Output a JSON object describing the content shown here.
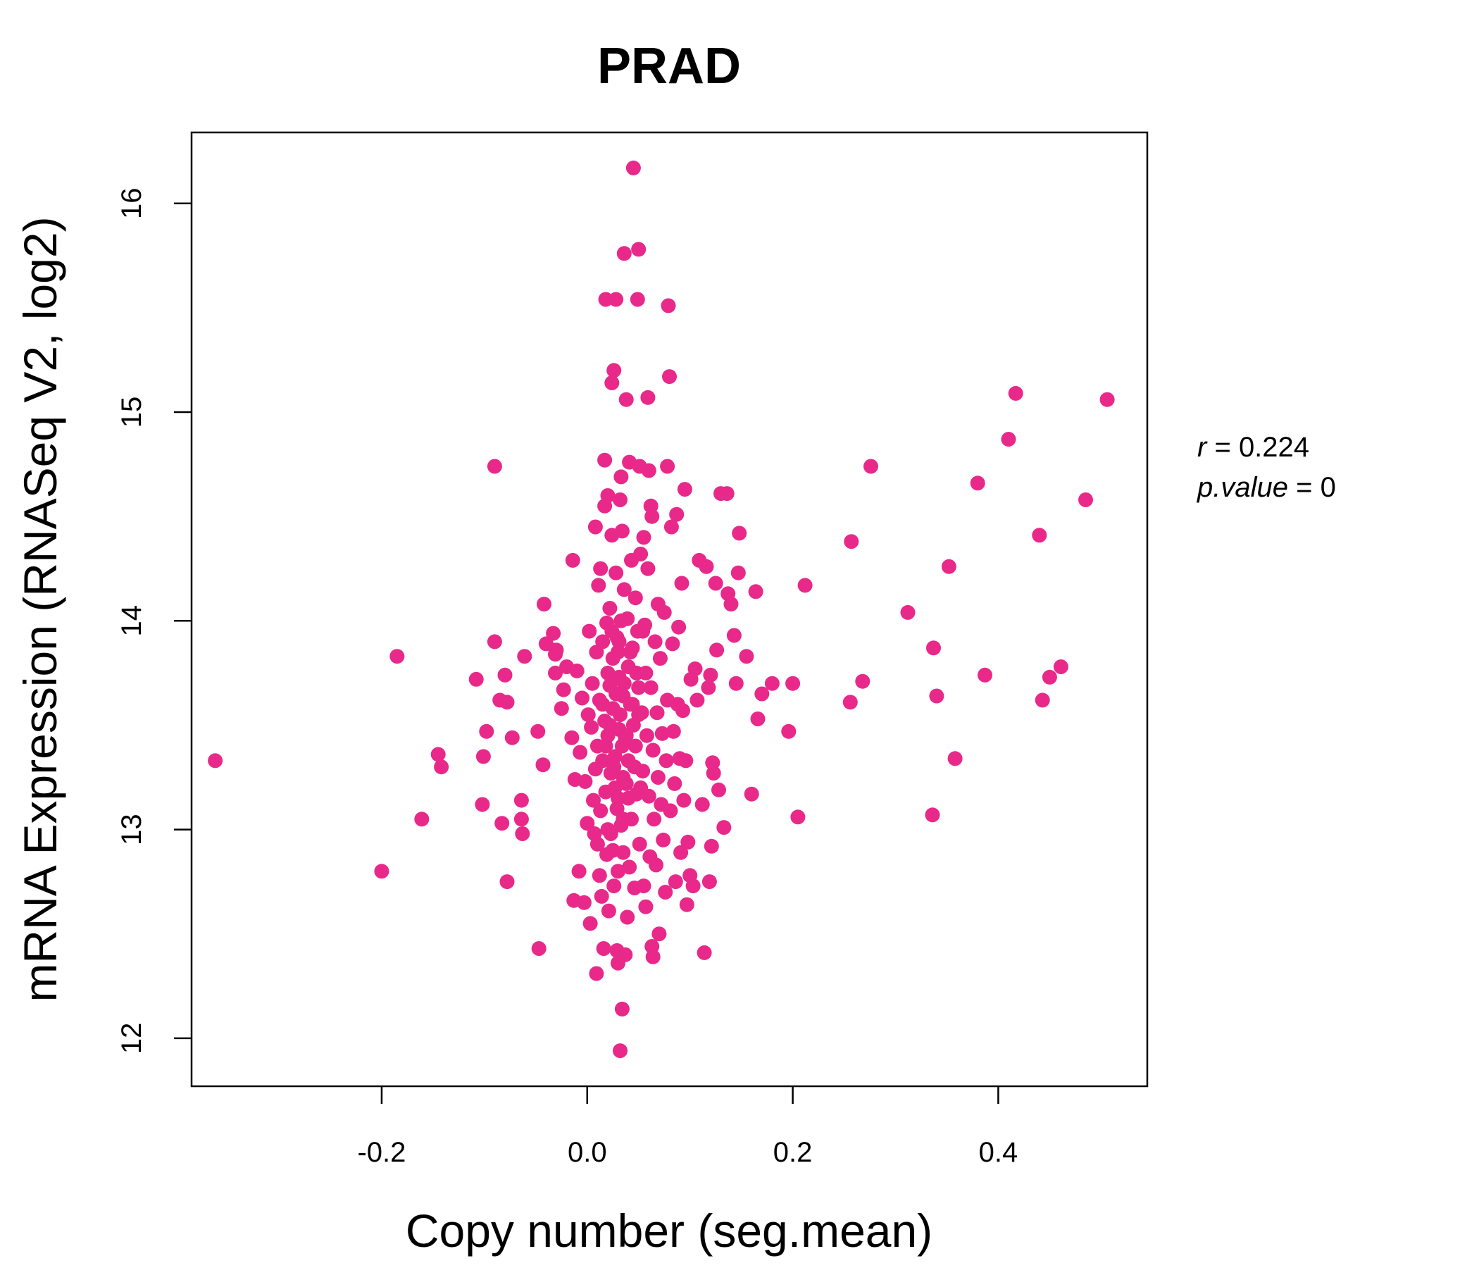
{
  "colors": {
    "point": "#e8298a",
    "title": "#e8298a",
    "axis": "#000000"
  },
  "chart_data": {
    "type": "scatter",
    "title": "PRAD",
    "xlabel": "Copy number (seg.mean)",
    "ylabel": "mRNA Expression (RNASeq V2, log2)",
    "xlim": [
      -0.385,
      0.545
    ],
    "ylim": [
      11.77,
      16.34
    ],
    "x_ticks": [
      "-0.2",
      "0.0",
      "0.2",
      "0.4"
    ],
    "y_ticks": [
      "12",
      "13",
      "14",
      "15",
      "16"
    ],
    "grid": false,
    "legend": "none",
    "stats": {
      "r_label": "r",
      "r_value": "0.224",
      "p_label": "p.value",
      "p_value": "0"
    },
    "points": [
      [
        -0.362,
        13.33
      ],
      [
        -0.2,
        12.8
      ],
      [
        -0.185,
        13.83
      ],
      [
        -0.161,
        13.05
      ],
      [
        -0.145,
        13.36
      ],
      [
        -0.142,
        13.3
      ],
      [
        -0.108,
        13.72
      ],
      [
        -0.102,
        13.12
      ],
      [
        -0.101,
        13.35
      ],
      [
        -0.098,
        13.47
      ],
      [
        -0.09,
        14.74
      ],
      [
        -0.09,
        13.9
      ],
      [
        -0.085,
        13.62
      ],
      [
        -0.083,
        13.03
      ],
      [
        -0.08,
        13.74
      ],
      [
        -0.078,
        13.61
      ],
      [
        -0.078,
        12.75
      ],
      [
        -0.073,
        13.44
      ],
      [
        -0.064,
        13.14
      ],
      [
        -0.064,
        13.05
      ],
      [
        -0.063,
        12.98
      ],
      [
        -0.061,
        13.83
      ],
      [
        -0.048,
        13.47
      ],
      [
        -0.047,
        12.43
      ],
      [
        -0.043,
        13.31
      ],
      [
        -0.042,
        14.08
      ],
      [
        -0.04,
        13.89
      ],
      [
        -0.033,
        13.94
      ],
      [
        -0.031,
        13.84
      ],
      [
        -0.031,
        13.75
      ],
      [
        -0.03,
        13.86
      ],
      [
        -0.025,
        13.58
      ],
      [
        -0.023,
        13.67
      ],
      [
        -0.02,
        13.78
      ],
      [
        -0.015,
        13.44
      ],
      [
        -0.014,
        14.29
      ],
      [
        -0.013,
        12.66
      ],
      [
        -0.012,
        13.24
      ],
      [
        -0.01,
        13.76
      ],
      [
        -0.008,
        12.8
      ],
      [
        -0.007,
        13.37
      ],
      [
        -0.005,
        13.63
      ],
      [
        -0.003,
        12.65
      ],
      [
        -0.002,
        13.23
      ],
      [
        0.0,
        13.03
      ],
      [
        0.001,
        13.55
      ],
      [
        0.002,
        13.95
      ],
      [
        0.003,
        12.55
      ],
      [
        0.004,
        13.49
      ],
      [
        0.005,
        13.7
      ],
      [
        0.006,
        13.14
      ],
      [
        0.007,
        12.98
      ],
      [
        0.008,
        14.45
      ],
      [
        0.008,
        13.29
      ],
      [
        0.009,
        12.31
      ],
      [
        0.009,
        13.85
      ],
      [
        0.01,
        13.4
      ],
      [
        0.01,
        12.93
      ],
      [
        0.011,
        14.17
      ],
      [
        0.012,
        13.62
      ],
      [
        0.012,
        12.78
      ],
      [
        0.013,
        14.25
      ],
      [
        0.013,
        13.09
      ],
      [
        0.014,
        12.68
      ],
      [
        0.015,
        13.9
      ],
      [
        0.015,
        13.33
      ],
      [
        0.016,
        12.43
      ],
      [
        0.017,
        14.77
      ],
      [
        0.017,
        14.55
      ],
      [
        0.017,
        13.52
      ],
      [
        0.018,
        15.54
      ],
      [
        0.018,
        13.18
      ],
      [
        0.019,
        13.99
      ],
      [
        0.019,
        12.88
      ],
      [
        0.02,
        14.6
      ],
      [
        0.02,
        13.45
      ],
      [
        0.021,
        12.61
      ],
      [
        0.022,
        14.06
      ],
      [
        0.022,
        13.69
      ],
      [
        0.023,
        13.27
      ],
      [
        0.023,
        12.98
      ],
      [
        0.024,
        15.14
      ],
      [
        0.024,
        14.41
      ],
      [
        0.025,
        13.82
      ],
      [
        0.025,
        13.58
      ],
      [
        0.026,
        15.2
      ],
      [
        0.026,
        12.73
      ],
      [
        0.027,
        13.35
      ],
      [
        0.028,
        15.54
      ],
      [
        0.028,
        14.23
      ],
      [
        0.029,
        13.92
      ],
      [
        0.029,
        12.42
      ],
      [
        0.03,
        13.15
      ],
      [
        0.03,
        12.36
      ],
      [
        0.031,
        13.73
      ],
      [
        0.031,
        13.48
      ],
      [
        0.032,
        14.58
      ],
      [
        0.032,
        11.94
      ],
      [
        0.033,
        14.69
      ],
      [
        0.033,
        13.02
      ],
      [
        0.034,
        14.43
      ],
      [
        0.034,
        12.14
      ],
      [
        0.035,
        13.64
      ],
      [
        0.035,
        12.89
      ],
      [
        0.036,
        15.76
      ],
      [
        0.036,
        14.15
      ],
      [
        0.037,
        13.44
      ],
      [
        0.037,
        12.4
      ],
      [
        0.038,
        15.06
      ],
      [
        0.038,
        13.22
      ],
      [
        0.039,
        12.58
      ],
      [
        0.039,
        14.01
      ],
      [
        0.04,
        13.78
      ],
      [
        0.04,
        13.33
      ],
      [
        0.041,
        14.76
      ],
      [
        0.041,
        12.82
      ],
      [
        0.042,
        13.6
      ],
      [
        0.043,
        14.29
      ],
      [
        0.043,
        13.05
      ],
      [
        0.044,
        13.87
      ],
      [
        0.045,
        16.17
      ],
      [
        0.045,
        13.5
      ],
      [
        0.046,
        12.72
      ],
      [
        0.047,
        14.11
      ],
      [
        0.047,
        13.4
      ],
      [
        0.048,
        13.17
      ],
      [
        0.049,
        15.54
      ],
      [
        0.049,
        13.95
      ],
      [
        0.05,
        15.78
      ],
      [
        0.05,
        13.68
      ],
      [
        0.051,
        14.74
      ],
      [
        0.051,
        12.93
      ],
      [
        0.052,
        14.32
      ],
      [
        0.053,
        13.56
      ],
      [
        0.054,
        13.28
      ],
      [
        0.055,
        14.4
      ],
      [
        0.055,
        12.73
      ],
      [
        0.056,
        13.98
      ],
      [
        0.057,
        12.63
      ],
      [
        0.058,
        13.45
      ],
      [
        0.059,
        15.07
      ],
      [
        0.059,
        14.25
      ],
      [
        0.06,
        14.72
      ],
      [
        0.06,
        13.16
      ],
      [
        0.061,
        12.87
      ],
      [
        0.062,
        14.55
      ],
      [
        0.062,
        13.68
      ],
      [
        0.063,
        14.5
      ],
      [
        0.063,
        12.44
      ],
      [
        0.064,
        13.38
      ],
      [
        0.064,
        12.39
      ],
      [
        0.065,
        13.05
      ],
      [
        0.066,
        13.9
      ],
      [
        0.067,
        12.83
      ],
      [
        0.068,
        13.56
      ],
      [
        0.069,
        14.08
      ],
      [
        0.069,
        13.25
      ],
      [
        0.07,
        12.5
      ],
      [
        0.071,
        13.82
      ],
      [
        0.072,
        13.12
      ],
      [
        0.073,
        13.46
      ],
      [
        0.074,
        12.95
      ],
      [
        0.075,
        14.04
      ],
      [
        0.076,
        12.7
      ],
      [
        0.077,
        13.33
      ],
      [
        0.078,
        14.74
      ],
      [
        0.078,
        13.62
      ],
      [
        0.079,
        15.51
      ],
      [
        0.08,
        15.17
      ],
      [
        0.081,
        13.09
      ],
      [
        0.082,
        14.45
      ],
      [
        0.083,
        13.89
      ],
      [
        0.084,
        13.47
      ],
      [
        0.085,
        13.22
      ],
      [
        0.086,
        12.75
      ],
      [
        0.087,
        14.51
      ],
      [
        0.088,
        13.6
      ],
      [
        0.089,
        13.97
      ],
      [
        0.09,
        13.34
      ],
      [
        0.091,
        12.89
      ],
      [
        0.092,
        14.18
      ],
      [
        0.093,
        13.57
      ],
      [
        0.094,
        13.14
      ],
      [
        0.095,
        14.63
      ],
      [
        0.096,
        13.33
      ],
      [
        0.097,
        12.64
      ],
      [
        0.098,
        12.94
      ],
      [
        0.1,
        12.78
      ],
      [
        0.101,
        13.72
      ],
      [
        0.103,
        12.73
      ],
      [
        0.105,
        13.77
      ],
      [
        0.107,
        13.62
      ],
      [
        0.109,
        14.29
      ],
      [
        0.112,
        13.12
      ],
      [
        0.114,
        12.41
      ],
      [
        0.116,
        14.26
      ],
      [
        0.118,
        13.68
      ],
      [
        0.119,
        12.75
      ],
      [
        0.12,
        13.74
      ],
      [
        0.121,
        12.92
      ],
      [
        0.122,
        13.32
      ],
      [
        0.123,
        13.27
      ],
      [
        0.125,
        14.18
      ],
      [
        0.126,
        13.86
      ],
      [
        0.128,
        13.19
      ],
      [
        0.13,
        14.61
      ],
      [
        0.133,
        13.01
      ],
      [
        0.136,
        14.61
      ],
      [
        0.137,
        14.13
      ],
      [
        0.14,
        14.08
      ],
      [
        0.143,
        13.93
      ],
      [
        0.145,
        13.7
      ],
      [
        0.147,
        14.23
      ],
      [
        0.148,
        14.42
      ],
      [
        0.155,
        13.83
      ],
      [
        0.16,
        13.17
      ],
      [
        0.164,
        14.14
      ],
      [
        0.166,
        13.53
      ],
      [
        0.17,
        13.65
      ],
      [
        0.18,
        13.7
      ],
      [
        0.196,
        13.47
      ],
      [
        0.2,
        13.7
      ],
      [
        0.205,
        13.06
      ],
      [
        0.212,
        14.17
      ],
      [
        0.256,
        13.61
      ],
      [
        0.257,
        14.38
      ],
      [
        0.268,
        13.71
      ],
      [
        0.276,
        14.74
      ],
      [
        0.312,
        14.04
      ],
      [
        0.336,
        13.07
      ],
      [
        0.337,
        13.87
      ],
      [
        0.34,
        13.64
      ],
      [
        0.352,
        14.26
      ],
      [
        0.358,
        13.34
      ],
      [
        0.38,
        14.66
      ],
      [
        0.387,
        13.74
      ],
      [
        0.41,
        14.87
      ],
      [
        0.417,
        15.09
      ],
      [
        0.44,
        14.41
      ],
      [
        0.443,
        13.62
      ],
      [
        0.45,
        13.73
      ],
      [
        0.461,
        13.78
      ],
      [
        0.485,
        14.58
      ],
      [
        0.506,
        15.06
      ],
      [
        0.02,
        13.75
      ],
      [
        0.022,
        13.5
      ],
      [
        0.024,
        13.95
      ],
      [
        0.026,
        13.3
      ],
      [
        0.028,
        13.65
      ],
      [
        0.03,
        13.85
      ],
      [
        0.032,
        13.55
      ],
      [
        0.034,
        13.4
      ],
      [
        0.036,
        13.7
      ],
      [
        0.027,
        13.2
      ],
      [
        0.029,
        13.1
      ],
      [
        0.031,
        13.9
      ],
      [
        0.033,
        14.0
      ],
      [
        0.035,
        13.25
      ],
      [
        0.038,
        13.45
      ],
      [
        0.04,
        13.15
      ],
      [
        0.042,
        13.85
      ],
      [
        0.044,
        13.6
      ],
      [
        0.046,
        13.3
      ],
      [
        0.048,
        13.75
      ],
      [
        0.015,
        13.6
      ],
      [
        0.018,
        13.4
      ],
      [
        0.02,
        13.0
      ],
      [
        0.025,
        12.9
      ],
      [
        0.03,
        12.8
      ],
      [
        0.035,
        13.05
      ],
      [
        0.05,
        13.55
      ],
      [
        0.052,
        13.2
      ],
      [
        0.054,
        13.95
      ],
      [
        0.057,
        13.75
      ]
    ]
  }
}
